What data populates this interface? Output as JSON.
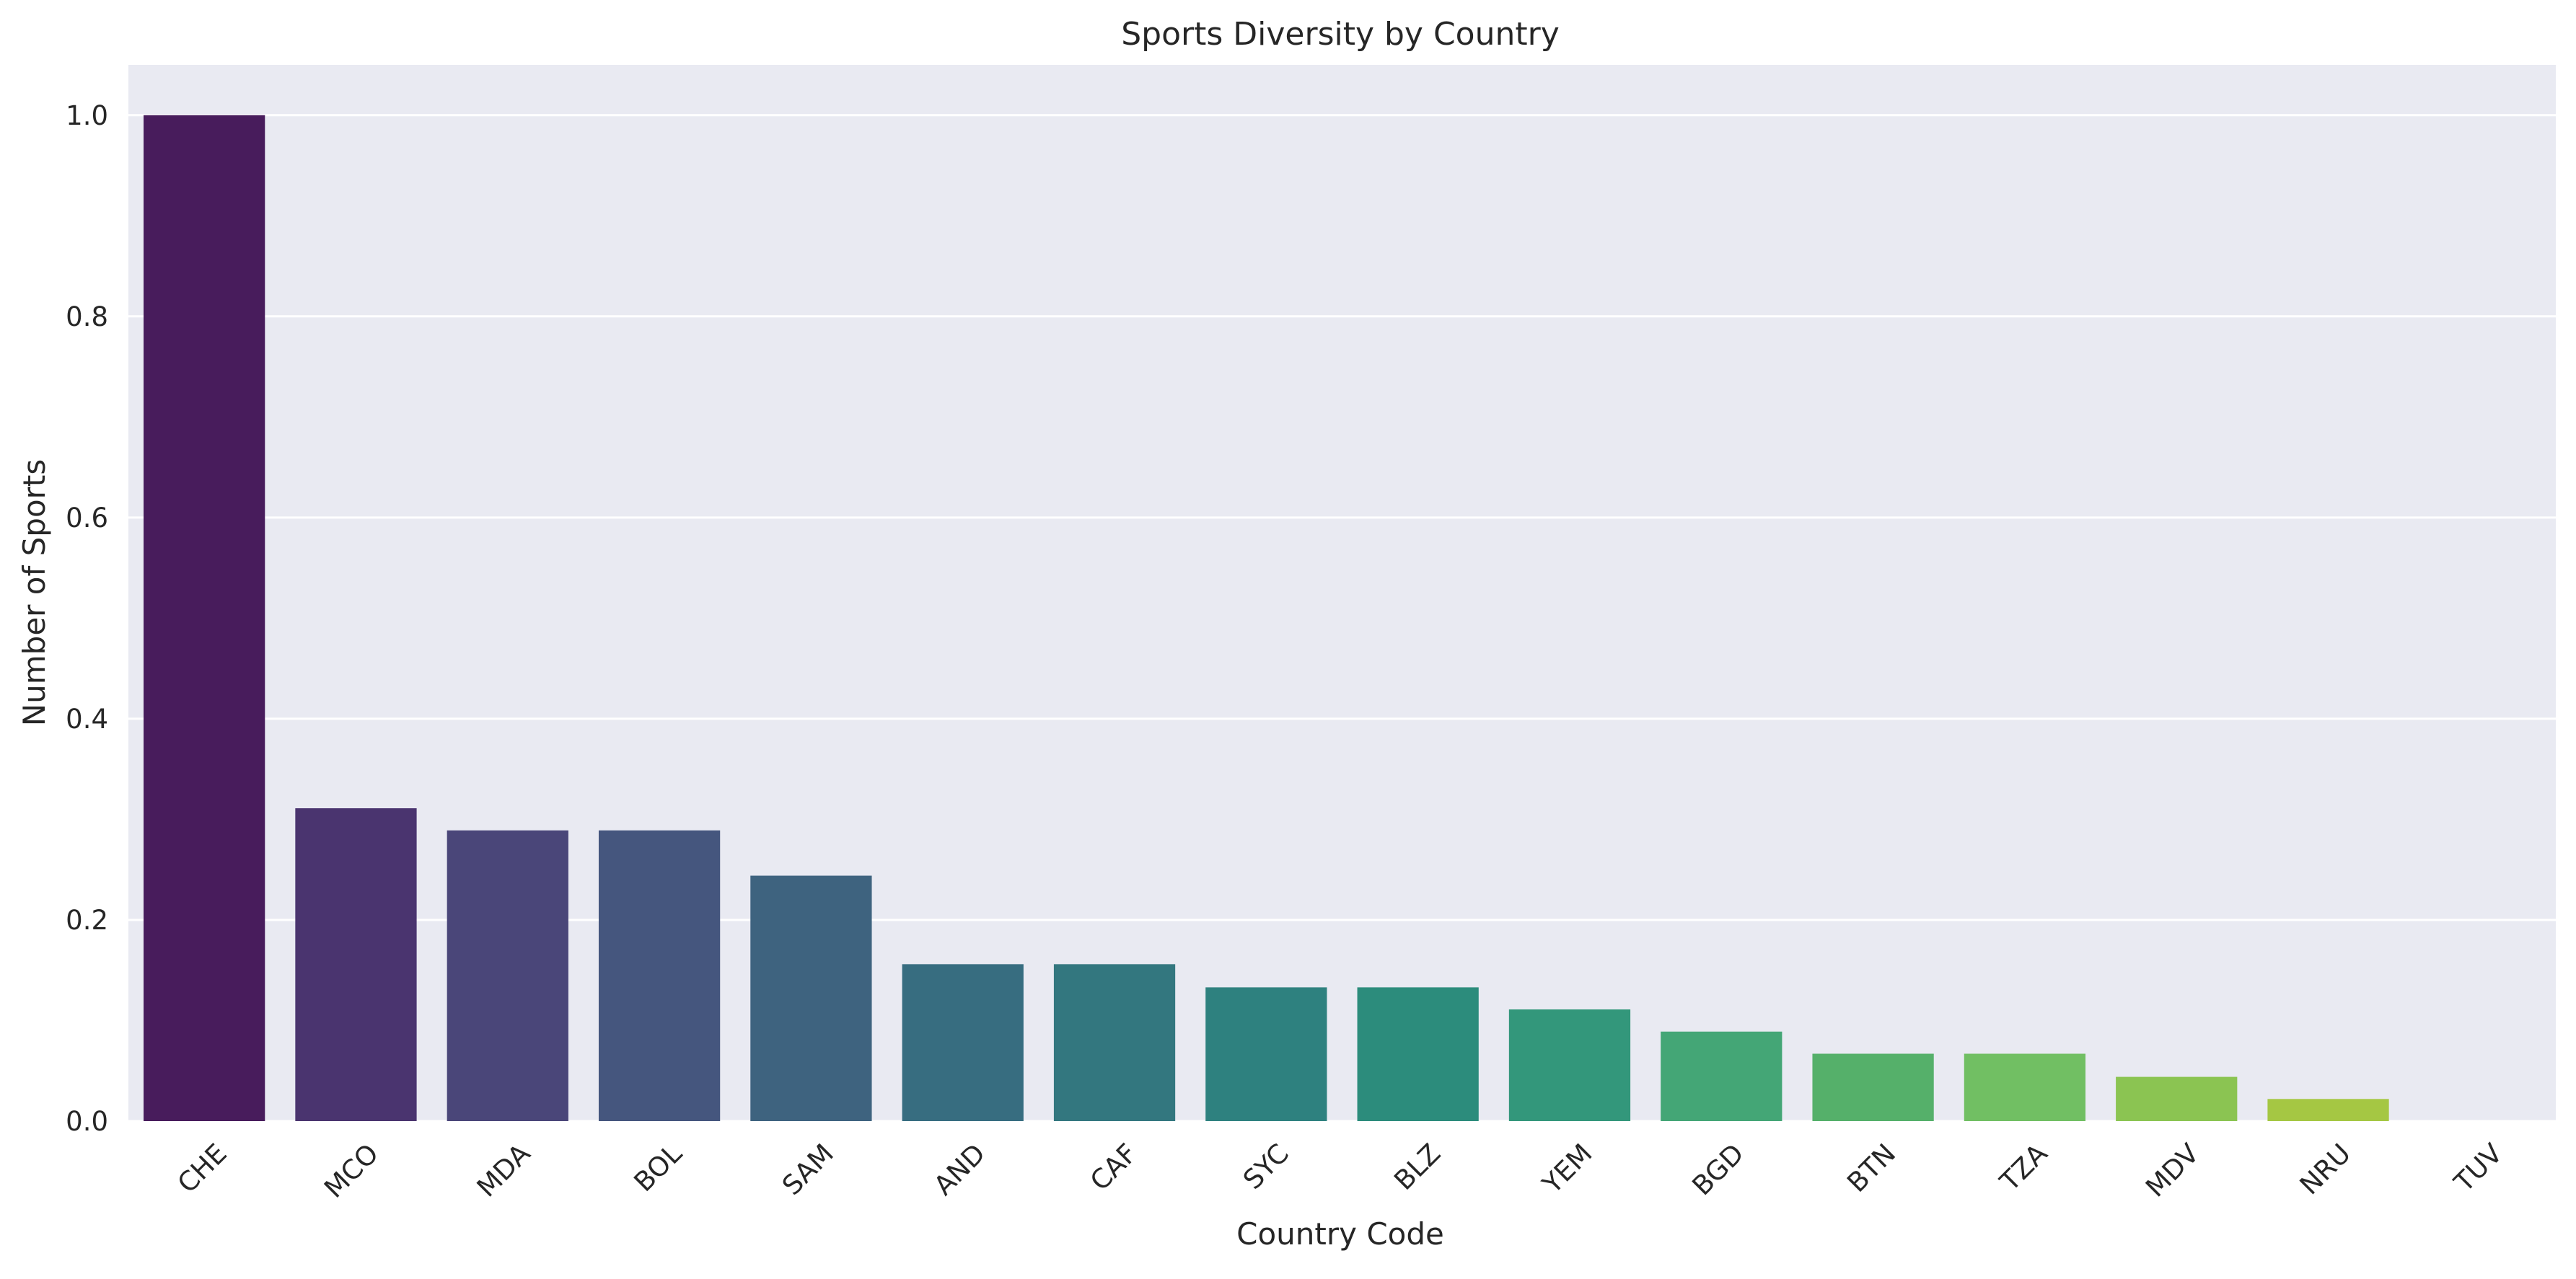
{
  "chart_data": {
    "type": "bar",
    "title": "Sports Diversity by Country",
    "xlabel": "Country Code",
    "ylabel": "Number of Sports",
    "categories": [
      "CHE",
      "MCO",
      "MDA",
      "BOL",
      "SAM",
      "AND",
      "CAF",
      "SYC",
      "BLZ",
      "YEM",
      "BGD",
      "BTN",
      "TZA",
      "MDV",
      "NRU",
      "TUV"
    ],
    "values": [
      1.0,
      0.311,
      0.289,
      0.289,
      0.244,
      0.156,
      0.156,
      0.133,
      0.133,
      0.111,
      0.089,
      0.067,
      0.067,
      0.044,
      0.022,
      0.0
    ],
    "ylim": [
      0,
      1.05
    ],
    "yticks": [
      "0.0",
      "0.2",
      "0.4",
      "0.6",
      "0.8",
      "1.0"
    ],
    "grid": true,
    "legend": "none",
    "colors": [
      "#481c5c",
      "#4a346f",
      "#4a4679",
      "#45567e",
      "#3e637f",
      "#376d80",
      "#33777f",
      "#2e817f",
      "#2c8c7c",
      "#33977b",
      "#44a676",
      "#55b06a",
      "#71bf63",
      "#8bc452",
      "#a5c743",
      "#bdca32"
    ],
    "background": "#e9eaf2",
    "grid_color": "#ffffff"
  }
}
